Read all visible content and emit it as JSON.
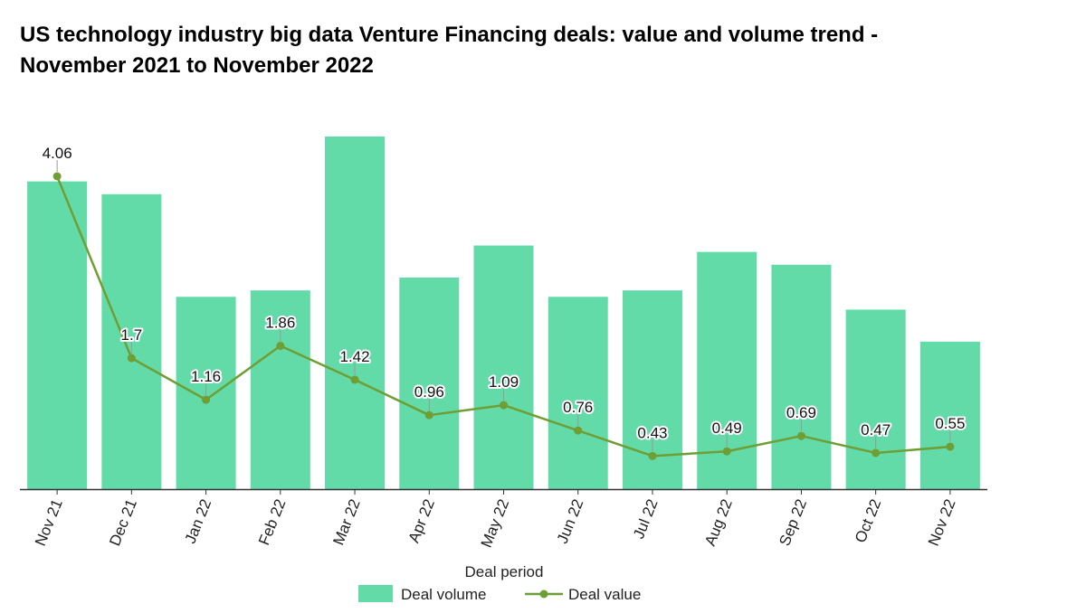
{
  "title_lines": [
    "US technology industry big data Venture Financing deals: value and volume trend -",
    "November 2021 to November 2022"
  ],
  "colors": {
    "bar": "#63dba9",
    "line": "#6e9e34",
    "axis": "#333333"
  },
  "chart_data": {
    "type": "bar",
    "categories": [
      "Nov 21",
      "Dec 21",
      "Jan 22",
      "Feb 22",
      "Mar 22",
      "Apr 22",
      "May 22",
      "Jun 22",
      "Jul 22",
      "Aug 22",
      "Sep 22",
      "Oct 22",
      "Nov 22"
    ],
    "xlabel": "Deal period",
    "series": [
      {
        "name": "Deal volume",
        "type": "bar",
        "values": [
          48,
          46,
          30,
          31,
          55,
          33,
          38,
          30,
          31,
          37,
          35,
          28,
          23
        ]
      },
      {
        "name": "Deal value",
        "type": "line",
        "values": [
          4.06,
          1.7,
          1.16,
          1.86,
          1.42,
          0.96,
          1.09,
          0.76,
          0.43,
          0.49,
          0.69,
          0.47,
          0.55
        ]
      }
    ],
    "volume_ylim": [
      0,
      55
    ],
    "value_ylim": [
      0,
      4.06
    ],
    "grid": false,
    "legend_position": "bottom-center"
  }
}
